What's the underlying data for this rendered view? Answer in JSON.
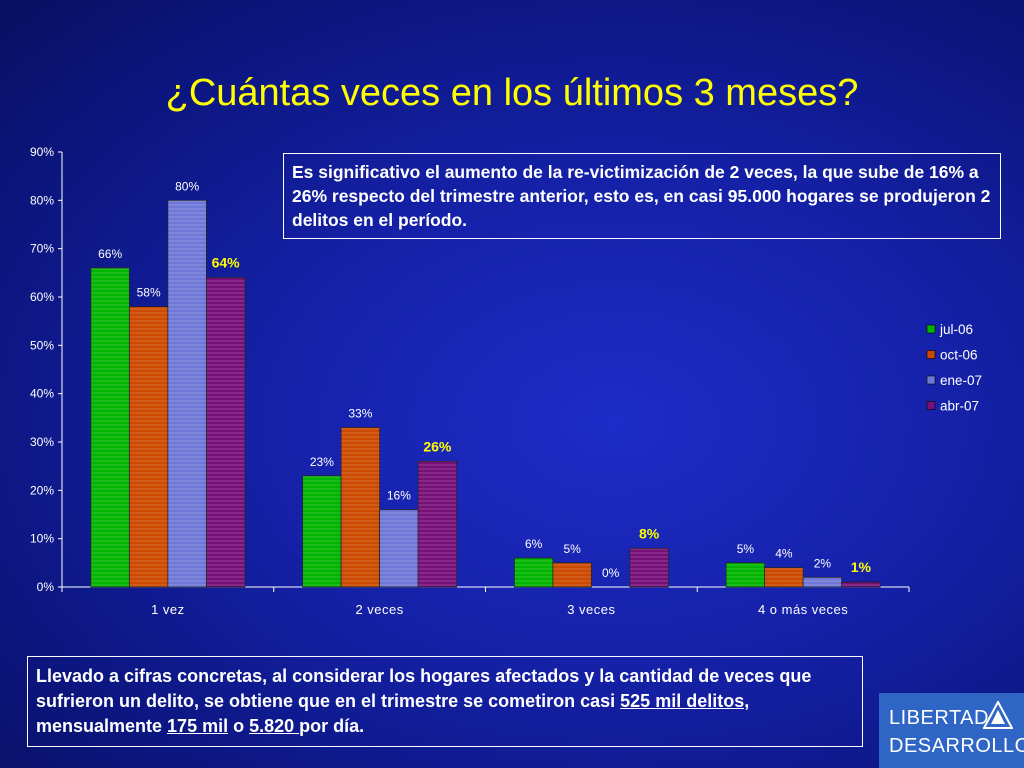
{
  "title": "¿Cuántas veces en los últimos 3 meses?",
  "chart_data": {
    "type": "bar",
    "categories": [
      "1 vez",
      "2 veces",
      "3 veces",
      "4 o más veces"
    ],
    "series": [
      {
        "name": "jul-06",
        "values": [
          66,
          23,
          6,
          5
        ],
        "labels": [
          "66%",
          "23%",
          "6%",
          "5%"
        ]
      },
      {
        "name": "oct-06",
        "values": [
          58,
          33,
          5,
          4
        ],
        "labels": [
          "58%",
          "33%",
          "5%",
          "4%"
        ]
      },
      {
        "name": "ene-07",
        "values": [
          80,
          16,
          0,
          2
        ],
        "labels": [
          "80%",
          "16%",
          "0%",
          "2%"
        ]
      },
      {
        "name": "abr-07",
        "values": [
          64,
          26,
          8,
          1
        ],
        "labels": [
          "64%",
          "26%",
          "8%",
          "1%"
        ]
      }
    ],
    "ylim": [
      0,
      90
    ],
    "yticks": [
      "0%",
      "10%",
      "20%",
      "30%",
      "40%",
      "50%",
      "60%",
      "70%",
      "80%",
      "90%"
    ],
    "legend_position": "right",
    "colors": {
      "jul-06": "#00b400",
      "oct-06": "#cc4a00",
      "ene-07": "#6f78d8",
      "abr-07": "#78107a"
    },
    "highlight_series_label_color": "#ffff00",
    "grid": false
  },
  "note_top": "Es significativo el aumento de la re-victimización de 2 veces, la que sube de 16% a 26% respecto del trimestre anterior, esto es, en casi 95.000 hogares se produjeron  2 delitos en el período.",
  "note_bottom": {
    "text1": "Llevado a cifras concretas, al considerar los hogares afectados y la cantidad de veces que sufrieron un delito, se obtiene que en el trimestre se cometiron casi ",
    "u1": "525 mil delitos,",
    "text2": " mensualmente ",
    "u2": "175 mil",
    "text3": " o ",
    "u3": "5.820 ",
    "text4": "por día."
  },
  "logo": {
    "line1": "LIBERTAD",
    "line2": "DESARROLLO"
  }
}
